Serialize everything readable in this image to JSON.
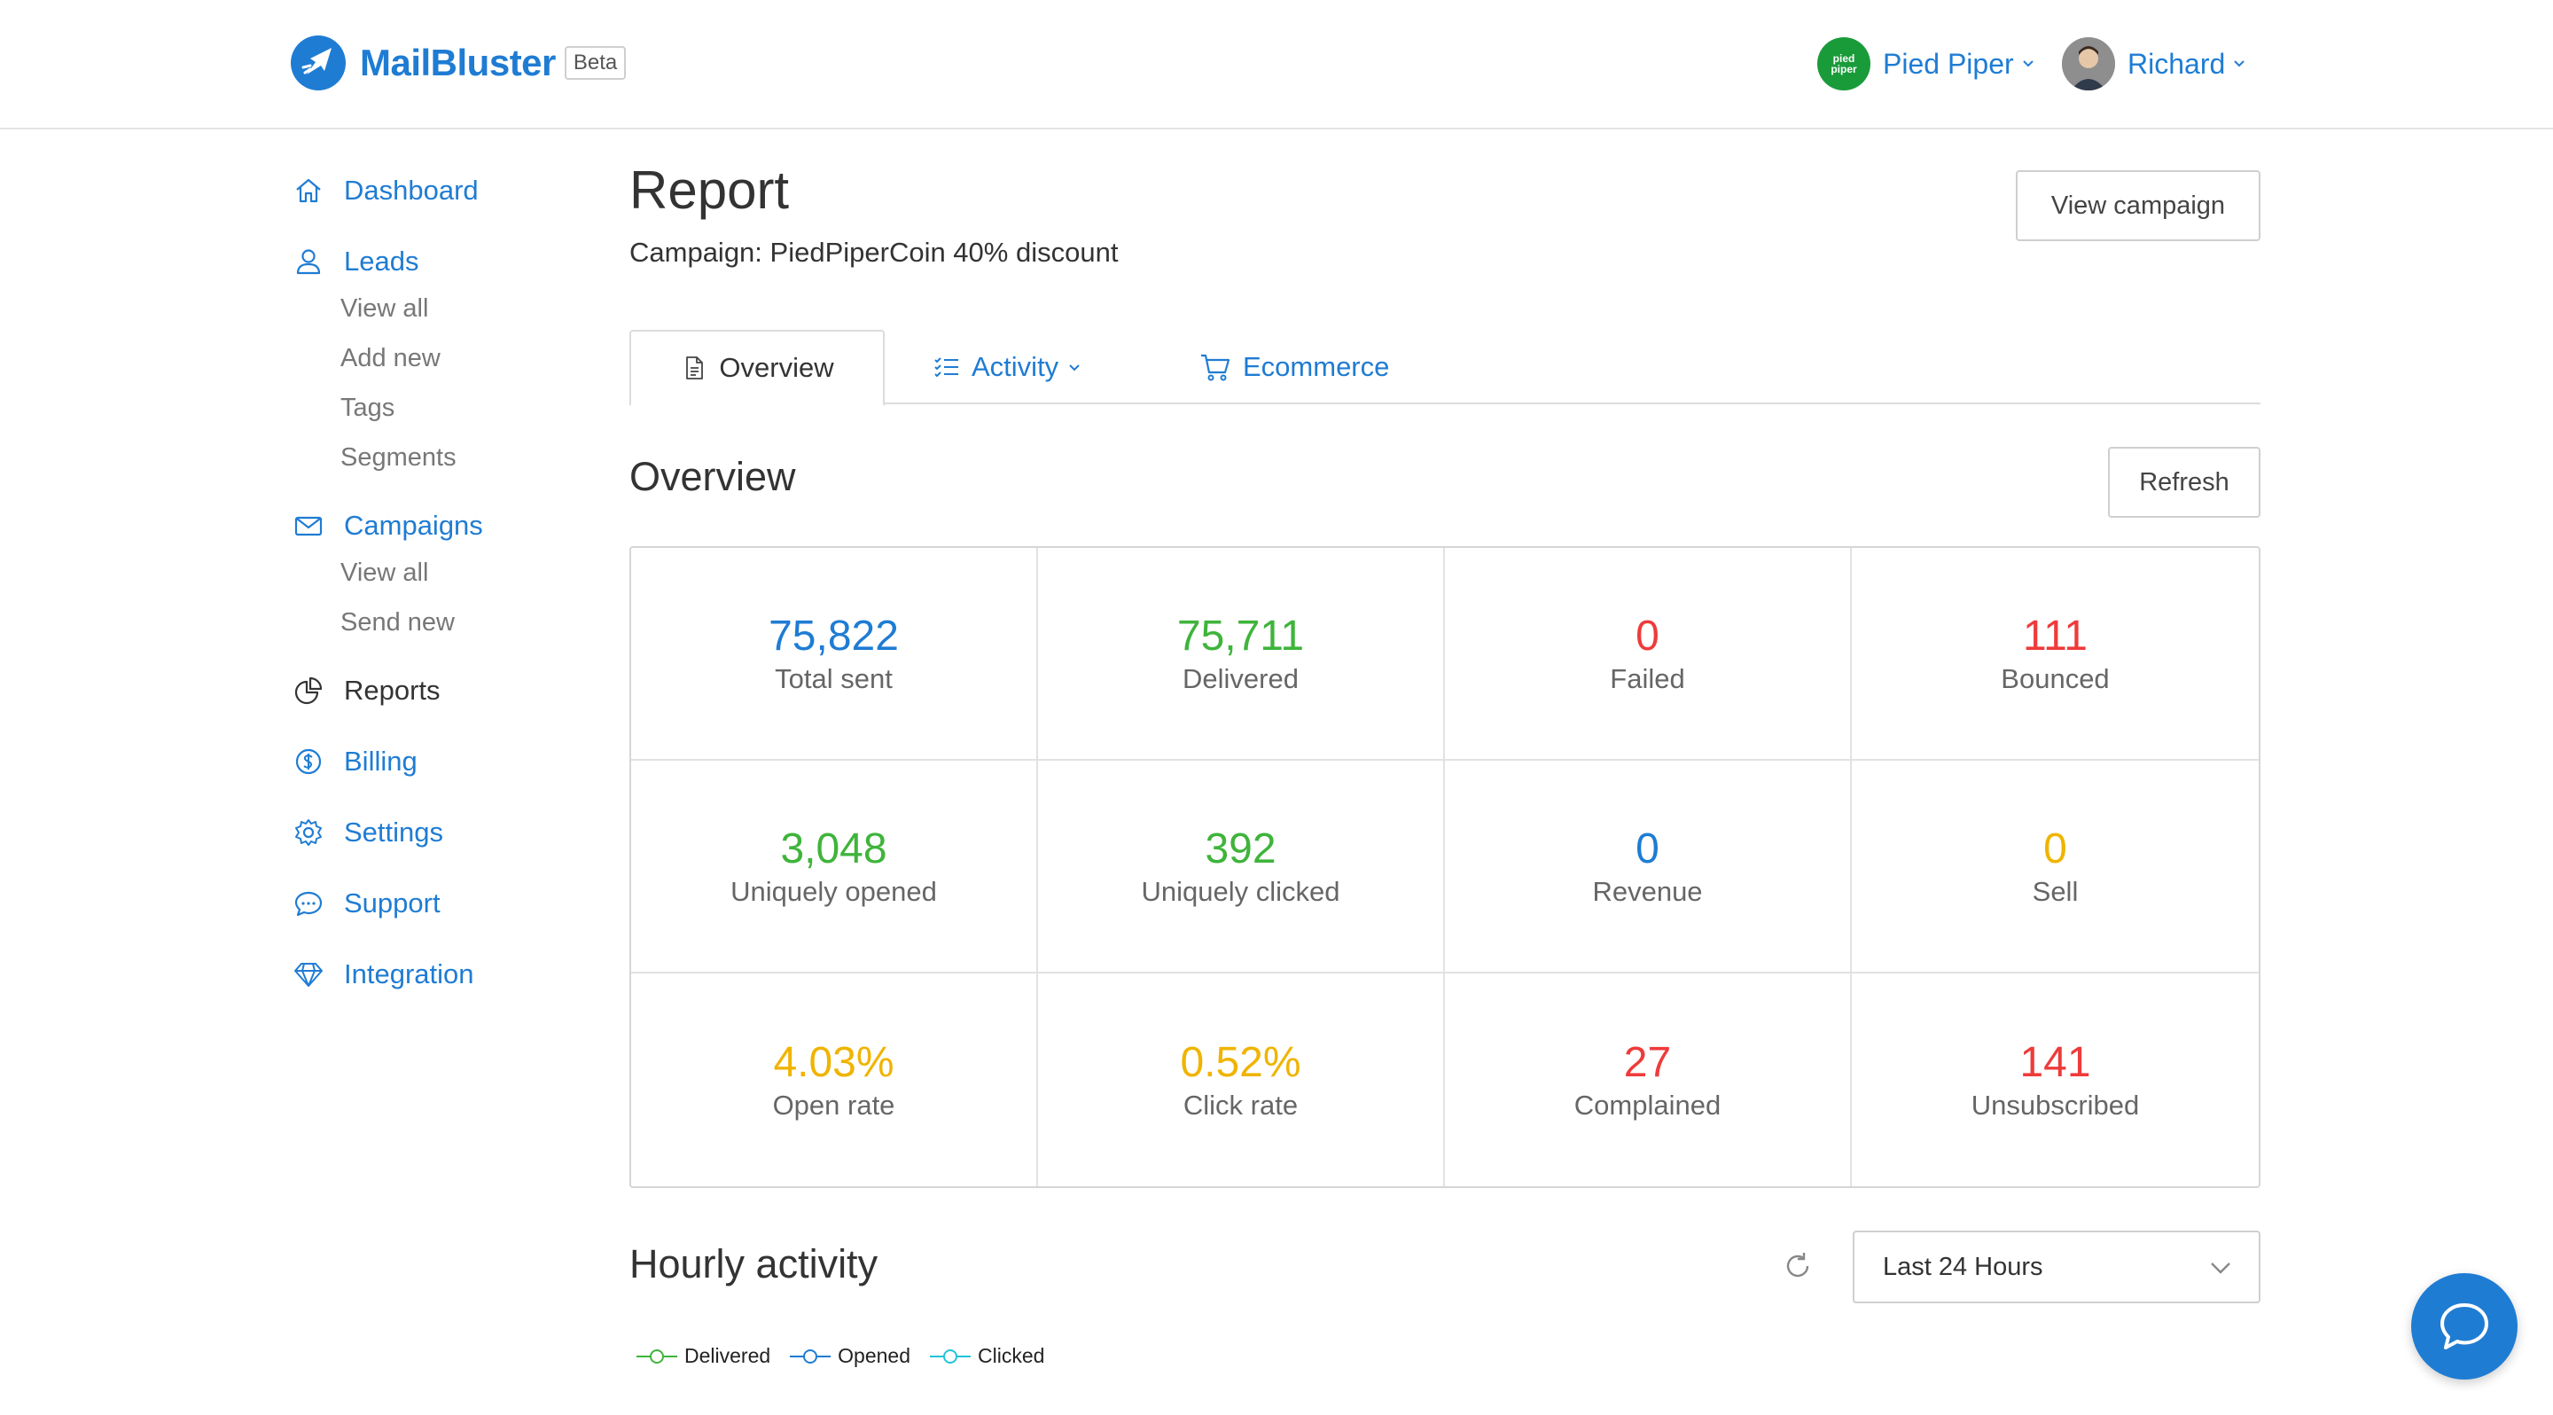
{
  "header": {
    "brand": "MailBluster",
    "badge": "Beta",
    "org_name": "Pied Piper",
    "org_logo_text": "pied piper",
    "user_name": "Richard"
  },
  "sidebar": {
    "dashboard": "Dashboard",
    "leads": "Leads",
    "leads_sub": [
      "View all",
      "Add new",
      "Tags",
      "Segments"
    ],
    "campaigns": "Campaigns",
    "campaigns_sub": [
      "View all",
      "Send new"
    ],
    "reports": "Reports",
    "billing": "Billing",
    "settings": "Settings",
    "support": "Support",
    "integration": "Integration"
  },
  "report": {
    "title": "Report",
    "campaign": "Campaign: PiedPiperCoin 40% discount",
    "view_campaign_label": "View campaign"
  },
  "tabs": {
    "overview": "Overview",
    "activity": "Activity",
    "ecommerce": "Ecommerce"
  },
  "overview": {
    "title": "Overview",
    "refresh_label": "Refresh",
    "stats": [
      {
        "value": "75,822",
        "label": "Total sent",
        "color": "#1f7cd3"
      },
      {
        "value": "75,711",
        "label": "Delivered",
        "color": "#3fb43b"
      },
      {
        "value": "0",
        "label": "Failed",
        "color": "#ee3b3b"
      },
      {
        "value": "111",
        "label": "Bounced",
        "color": "#ee3b3b"
      },
      {
        "value": "3,048",
        "label": "Uniquely opened",
        "color": "#3fb43b"
      },
      {
        "value": "392",
        "label": "Uniquely clicked",
        "color": "#3fb43b"
      },
      {
        "value": "0",
        "label": "Revenue",
        "color": "#1f7cd3"
      },
      {
        "value": "0",
        "label": "Sell",
        "color": "#f0b400"
      },
      {
        "value": "4.03%",
        "label": "Open rate",
        "color": "#f0b400"
      },
      {
        "value": "0.52%",
        "label": "Click rate",
        "color": "#f0b400"
      },
      {
        "value": "27",
        "label": "Complained",
        "color": "#ee3b3b"
      },
      {
        "value": "141",
        "label": "Unsubscribed",
        "color": "#ee3b3b"
      }
    ]
  },
  "hourly": {
    "title": "Hourly activity",
    "range_selected": "Last 24 Hours",
    "legend": [
      {
        "name": "Delivered",
        "color": "#3fb43b"
      },
      {
        "name": "Opened",
        "color": "#1f7cd3"
      },
      {
        "name": "Clicked",
        "color": "#22c3d8"
      }
    ]
  },
  "colors": {
    "accent": "#1f7cd3"
  }
}
